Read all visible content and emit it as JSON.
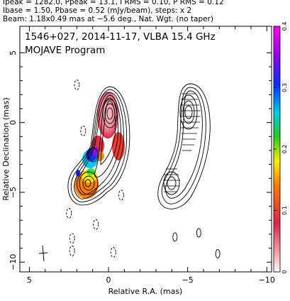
{
  "header": {
    "line1": "Ipeak = 1282.0, Ppeak = 13.1, I RMS = 0.10, P RMS = 0.12",
    "line2": "Ibase = 1.50, Pbase = 0.52 (mJy/beam), steps: x 2",
    "line3": "Beam: 1.18x0.49 mas at −5.6 deg., Nat. Wgt. (no taper)"
  },
  "chart_data": {
    "type": "heatmap",
    "title": "1546+027, 2014-11-17, VLBA 15.4 GHz",
    "subtitle": "MOJAVE Program",
    "xlabel": "Relative R.A. (mas)",
    "ylabel": "Relative Declination (mas)",
    "xlim": [
      5.6,
      -10.3
    ],
    "ylim": [
      -10.7,
      6.9
    ],
    "xticks": [
      "5",
      "0",
      "−5",
      "−10"
    ],
    "yticks": [
      "5",
      "0",
      "−5",
      "−10"
    ],
    "colorbar": {
      "min": 0,
      "max": 0.4,
      "ticks": [
        "0",
        "0.1",
        "0.2",
        "0.3",
        "0.4"
      ]
    },
    "beam": {
      "major_mas": 1.18,
      "minor_mas": 0.49,
      "pa_deg": -5.6
    },
    "map_offset_mas": 7.6,
    "jet_ridge": [
      {
        "x": 0.0,
        "y": 0.0
      },
      {
        "x": -0.2,
        "y": -1.5
      },
      {
        "x": 0.3,
        "y": -2.7
      },
      {
        "x": 1.0,
        "y": -3.7
      },
      {
        "x": 1.3,
        "y": -4.8
      }
    ],
    "isolated_contours": [
      {
        "x": 2.0,
        "y": 2.7
      },
      {
        "x": 1.6,
        "y": -0.6
      },
      {
        "x": -0.8,
        "y": -5.2
      },
      {
        "x": 2.5,
        "y": -6.5
      },
      {
        "x": 0.8,
        "y": -7.3
      },
      {
        "x": 2.3,
        "y": -8.3
      },
      {
        "x": 2.3,
        "y": -9.2
      },
      {
        "x": -0.3,
        "y": -9.3
      }
    ],
    "polarization_contours": [
      {
        "x": -4.2,
        "y": -8.2
      },
      {
        "x": -5.7,
        "y": -7.9
      },
      {
        "x": -6.9,
        "y": -9.4
      }
    ]
  }
}
